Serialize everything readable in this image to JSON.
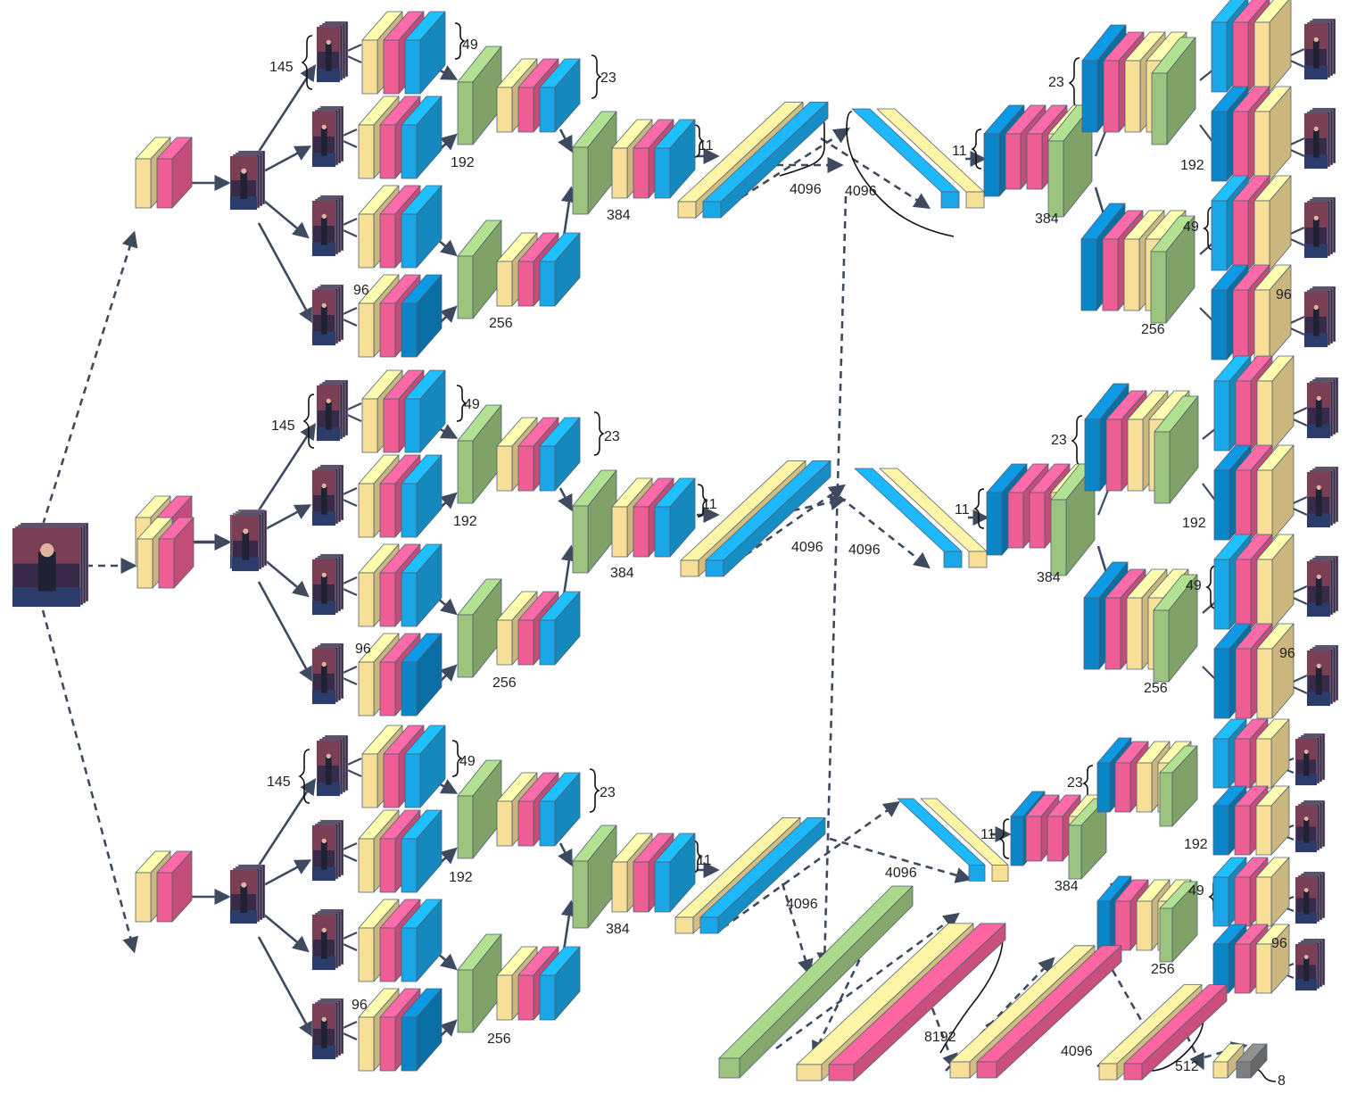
{
  "colors": {
    "yellow": "#f7df98",
    "pink": "#ee5d93",
    "blue": "#1aa7e8",
    "darkblue": "#0a86c8",
    "green": "#9cc47f",
    "gray": "#7f7f7f",
    "arrow": "#3e4a5e",
    "edge": "#4f6071"
  },
  "labels": {
    "filters_145": "145",
    "filters_49": "49",
    "filters_23": "23",
    "filters_11": "11",
    "channels_192": "192",
    "channels_96": "96",
    "channels_256": "256",
    "channels_384": "384",
    "fc_4096": "4096",
    "fc_8192": "8192",
    "fc_512": "512",
    "output_8": "8"
  }
}
